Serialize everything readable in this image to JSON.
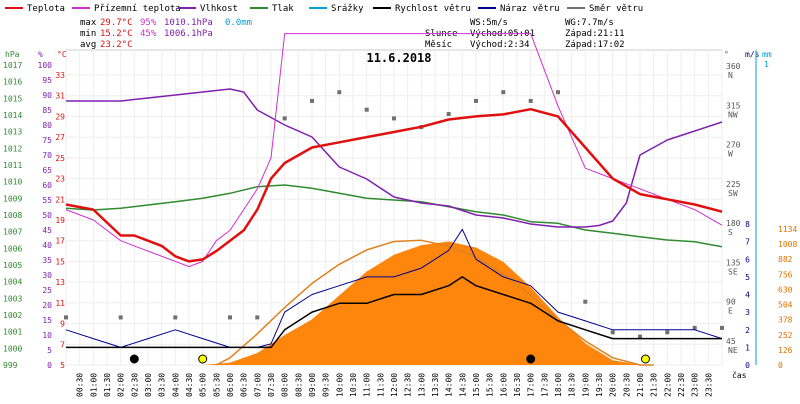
{
  "chart_data": {
    "type": "line",
    "title": "11.6.2018",
    "x_ticks": [
      "00:30",
      "01:00",
      "01:30",
      "02:00",
      "02:30",
      "03:00",
      "03:30",
      "04:00",
      "04:30",
      "05:00",
      "05:30",
      "06:00",
      "06:30",
      "07:00",
      "07:30",
      "08:00",
      "08:30",
      "09:00",
      "09:30",
      "10:00",
      "10:30",
      "11:00",
      "11:30",
      "12:00",
      "12:30",
      "13:00",
      "13:30",
      "14:00",
      "14:30",
      "15:00",
      "15:30",
      "16:00",
      "16:30",
      "17:00",
      "17:30",
      "18:00",
      "18:30",
      "19:00",
      "19:30",
      "20:00",
      "20:30",
      "21:00",
      "21:30",
      "22:00",
      "22:30",
      "23:00",
      "23:30"
    ],
    "x_axis_label": "čas",
    "legend": [
      {
        "label": "Teplota",
        "color": "#e01010"
      },
      {
        "label": "Přízemní teplota",
        "color": "#d030d0"
      },
      {
        "label": "Vlhkost",
        "color": "#8020b0"
      },
      {
        "label": "Tlak",
        "color": "#308a30"
      },
      {
        "label": "Srážky",
        "color": "#00a0d0"
      },
      {
        "label": "Rychlost větru",
        "color": "#000000"
      },
      {
        "label": "Náraz větru",
        "color": "#000090"
      },
      {
        "label": "Směr větru",
        "color": "#707070"
      }
    ],
    "stats": {
      "max": {
        "label": "max",
        "temp": "29.7°C",
        "hum": "95%",
        "press": "1010.1hPa",
        "rain": "0.0mm"
      },
      "min": {
        "label": "min",
        "temp": "15.2°C",
        "hum": "45%",
        "press": "1006.1hPa"
      },
      "avg": {
        "label": "avg",
        "temp": "23.2°C"
      },
      "ws": "WS:5m/s",
      "wg": "WG:7.7m/s",
      "sun": {
        "label": "Slunce",
        "rise": "Východ:05:01",
        "set": "Západ:21:11"
      },
      "moon": {
        "label": "Měsíc",
        "rise": "Východ:2:34",
        "set": "Západ:17:02"
      }
    },
    "axes": {
      "hpa": {
        "unit": "hPa",
        "ticks": [
          "1017",
          "1016",
          "1015",
          "1014",
          "1013",
          "1012",
          "1011",
          "1010",
          "1009",
          "1008",
          "1007",
          "1006",
          "1005",
          "1004",
          "1003",
          "1002",
          "1001",
          "1000",
          "999"
        ]
      },
      "percent": {
        "unit": "%",
        "ticks": [
          "100",
          "95",
          "90",
          "85",
          "80",
          "75",
          "70",
          "65",
          "60",
          "55",
          "50",
          "45",
          "40",
          "35",
          "30",
          "25",
          "20",
          "15",
          "10",
          "5",
          "0"
        ]
      },
      "celsius": {
        "unit": "°C",
        "ticks": [
          "33",
          "31",
          "29",
          "27",
          "25",
          "23",
          "21",
          "19",
          "17",
          "15",
          "13",
          "11",
          "9",
          "7",
          "5"
        ]
      },
      "direction": {
        "unit": "°",
        "ticks": [
          {
            "v": "360",
            "d": "N"
          },
          {
            "v": "315",
            "d": "NW"
          },
          {
            "v": "270",
            "d": "W"
          },
          {
            "v": "225",
            "d": "SW"
          },
          {
            "v": "180",
            "d": "S"
          },
          {
            "v": "135",
            "d": "SE"
          },
          {
            "v": "90",
            "d": "E"
          },
          {
            "v": "45",
            "d": "NE"
          }
        ]
      },
      "wind": {
        "unit": "m/s",
        "ticks": [
          "8",
          "7",
          "6",
          "5",
          "4",
          "3",
          "2",
          "1",
          "0"
        ]
      },
      "rain": {
        "unit": "mm",
        "ticks": [
          "1"
        ]
      },
      "solar": {
        "ticks": [
          "1134",
          "1008",
          "882",
          "756",
          "630",
          "504",
          "378",
          "252",
          "126",
          "0"
        ]
      }
    },
    "series": {
      "temperature": {
        "name": "Teplota",
        "x": [
          0,
          1,
          2,
          2.5,
          3,
          3.5,
          4,
          4.5,
          5,
          5.5,
          6,
          6.5,
          7,
          7.5,
          8,
          9,
          10,
          11,
          12,
          13,
          14,
          15,
          16,
          17,
          18,
          19,
          20,
          21,
          22,
          23,
          24
        ],
        "y": [
          20.5,
          20,
          17.5,
          17.5,
          17,
          16.5,
          15.5,
          15,
          15.2,
          16,
          17,
          18,
          20,
          23,
          24.5,
          26,
          26.5,
          27,
          27.5,
          28,
          28.7,
          29,
          29.2,
          29.7,
          29,
          26,
          23,
          21.5,
          21,
          20.5,
          19.8
        ]
      },
      "ground_temperature": {
        "name": "Přízemní teplota",
        "x": [
          0,
          1,
          2,
          3,
          4,
          4.5,
          5,
          5.5,
          6,
          6.5,
          7,
          7.5,
          8,
          17,
          18,
          19,
          20,
          21,
          22,
          23,
          24
        ],
        "y": [
          20,
          19,
          17,
          16,
          15,
          14.5,
          15,
          17,
          18,
          20,
          22,
          25,
          37,
          37,
          30,
          24,
          23,
          22,
          21,
          20,
          18.5
        ]
      },
      "humidity": {
        "name": "Vlhkost",
        "x": [
          0,
          1,
          2,
          3,
          4,
          5,
          6,
          6.5,
          7,
          8,
          9,
          10,
          11,
          12,
          13,
          14,
          15,
          16,
          17,
          18,
          19,
          19.5,
          20,
          20.5,
          21,
          22,
          23,
          24
        ],
        "y": [
          88,
          88,
          88,
          89,
          90,
          91,
          92,
          91,
          85,
          80,
          76,
          66,
          62,
          56,
          54,
          53,
          50,
          49,
          47,
          46,
          46,
          46.5,
          48,
          54,
          70,
          75,
          78,
          81
        ]
      },
      "pressure": {
        "name": "Tlak",
        "x": [
          0,
          1,
          2,
          3,
          4,
          5,
          6,
          7,
          8,
          9,
          10,
          11,
          12,
          13,
          14,
          15,
          16,
          17,
          18,
          19,
          20,
          21,
          22,
          23,
          24
        ],
        "y": [
          1008.4,
          1008.3,
          1008.4,
          1008.6,
          1008.8,
          1009,
          1009.3,
          1009.7,
          1009.8,
          1009.6,
          1009.3,
          1009,
          1008.9,
          1008.8,
          1008.5,
          1008.2,
          1008,
          1007.6,
          1007.5,
          1007.1,
          1006.9,
          1006.7,
          1006.5,
          1006.4,
          1006.1
        ]
      },
      "wind_speed": {
        "name": "Rychlost větru",
        "x": [
          0,
          1,
          2,
          3,
          4,
          5,
          6,
          7,
          7.5,
          8,
          9,
          10,
          11,
          12,
          13,
          14,
          14.5,
          15,
          16,
          17,
          18,
          19,
          20,
          21,
          22,
          23,
          24
        ],
        "y": [
          1,
          1,
          1,
          1,
          1,
          1,
          1,
          1,
          1,
          2,
          3,
          3.5,
          3.5,
          4,
          4,
          4.5,
          5,
          4.5,
          4,
          3.5,
          2.5,
          2,
          1.5,
          1.5,
          1.5,
          1.5,
          1.5
        ]
      },
      "wind_gust": {
        "name": "Náraz větru",
        "x": [
          0,
          1,
          2,
          3,
          4,
          5,
          6,
          7,
          7.5,
          8,
          9,
          10,
          11,
          12,
          13,
          14,
          14.5,
          15,
          16,
          17,
          18,
          19,
          20,
          21,
          22,
          23,
          24
        ],
        "y": [
          2,
          1.5,
          1,
          1.5,
          2,
          1.5,
          1,
          1,
          1.2,
          3,
          4,
          4.5,
          5,
          5,
          5.5,
          6.5,
          7.7,
          6,
          5,
          4.5,
          3,
          2.5,
          2,
          2,
          2,
          2,
          1.5
        ]
      },
      "wind_direction": {
        "name": "Směr větru",
        "x": [
          0,
          2,
          4,
          6,
          7,
          8,
          9,
          10,
          11,
          12,
          13,
          14,
          15,
          16,
          17,
          18,
          19,
          20,
          21,
          22,
          23,
          24
        ],
        "y": [
          72,
          72,
          72,
          72,
          72,
          300,
          320,
          330,
          310,
          300,
          290,
          305,
          320,
          330,
          320,
          330,
          90,
          55,
          50,
          55,
          60,
          60
        ]
      },
      "solar": {
        "x": [
          0,
          5,
          6,
          7,
          8,
          9,
          10,
          11,
          12,
          13,
          14,
          15,
          16,
          17,
          18,
          19,
          20,
          21,
          24
        ],
        "y": [
          0,
          0,
          20,
          100,
          250,
          380,
          580,
          780,
          920,
          1000,
          1030,
          980,
          860,
          650,
          400,
          180,
          40,
          0,
          0
        ]
      },
      "solar_theoretical": {
        "x": [
          5.5,
          6,
          7,
          8,
          9,
          10,
          11,
          12,
          13,
          14,
          15,
          16,
          17,
          18,
          19,
          20,
          21,
          21.5
        ],
        "y": [
          0,
          60,
          260,
          480,
          680,
          840,
          960,
          1030,
          1040,
          990,
          900,
          760,
          580,
          380,
          200,
          60,
          0,
          0
        ]
      }
    },
    "markers": [
      {
        "type": "moon",
        "x": 2.5
      },
      {
        "type": "sunrise",
        "x": 5.0
      },
      {
        "type": "moonset",
        "x": 17.0
      },
      {
        "type": "sunset",
        "x": 21.2
      }
    ]
  }
}
